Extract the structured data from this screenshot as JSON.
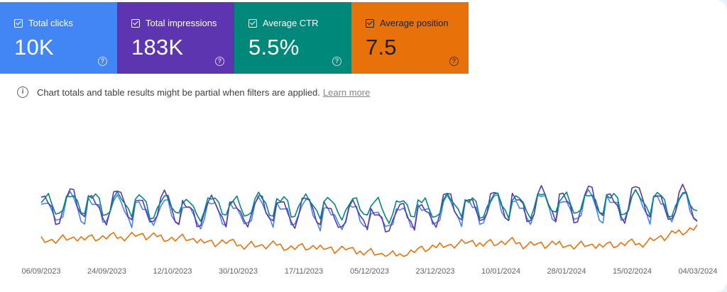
{
  "metrics": [
    {
      "label": "Total clicks",
      "value": "10K",
      "color": "#4285f4"
    },
    {
      "label": "Total impressions",
      "value": "183K",
      "color": "#5e35b1"
    },
    {
      "label": "Average CTR",
      "value": "5.5%",
      "color": "#00897b"
    },
    {
      "label": "Average position",
      "value": "7.5",
      "color": "#e8710a"
    }
  ],
  "notice": {
    "text": "Chart totals and table results might be partial when filters are applied.",
    "link": "Learn more"
  },
  "chart_data": {
    "type": "line",
    "x_tick_labels": [
      "06/09/2023",
      "24/09/2023",
      "12/10/2023",
      "30/10/2023",
      "17/11/2023",
      "05/12/2023",
      "23/12/2023",
      "10/01/2024",
      "28/01/2024",
      "15/02/2024",
      "04/03/2024"
    ],
    "x_range": [
      "06/09/2023",
      "06/03/2024"
    ],
    "grid": false,
    "y_axes_visible": false,
    "series": [
      {
        "name": "Total clicks",
        "color": "#4285f4",
        "pattern": [
          0.6,
          0.58,
          0.55,
          0.52,
          0.38,
          0.36,
          0.44,
          0.62,
          0.66,
          0.64,
          0.5,
          0.4,
          0.34
        ],
        "level": [
          0.78,
          0.8,
          0.75,
          0.7,
          0.72,
          0.74,
          0.65,
          0.62,
          0.76,
          0.78,
          0.8,
          0.82,
          0.85,
          0.8
        ]
      },
      {
        "name": "Total impressions",
        "color": "#5e35b1",
        "pattern": [
          0.62,
          0.6,
          0.57,
          0.5,
          0.36,
          0.34,
          0.46,
          0.64,
          0.7,
          0.66,
          0.52,
          0.42,
          0.36
        ],
        "level": [
          0.8,
          0.84,
          0.8,
          0.72,
          0.74,
          0.76,
          0.66,
          0.6,
          0.78,
          0.82,
          0.84,
          0.86,
          0.88,
          0.82
        ]
      },
      {
        "name": "Average CTR",
        "color": "#00897b",
        "pattern": [
          0.58,
          0.6,
          0.62,
          0.55,
          0.42,
          0.4,
          0.48,
          0.6,
          0.64,
          0.62,
          0.54,
          0.46,
          0.42
        ],
        "level": [
          0.82,
          0.85,
          0.82,
          0.78,
          0.8,
          0.82,
          0.78,
          0.75,
          0.8,
          0.82,
          0.84,
          0.85,
          0.86,
          0.84
        ]
      },
      {
        "name": "Average position",
        "color": "#e8710a",
        "pattern": [
          0.22,
          0.2,
          0.18,
          0.16,
          0.17,
          0.19,
          0.21,
          0.2,
          0.18,
          0.16,
          0.17,
          0.19,
          0.21
        ],
        "level": [
          0.3,
          0.32,
          0.34,
          0.3,
          0.26,
          0.24,
          0.22,
          0.16,
          0.26,
          0.28,
          0.26,
          0.25,
          0.28,
          0.42
        ]
      }
    ]
  }
}
